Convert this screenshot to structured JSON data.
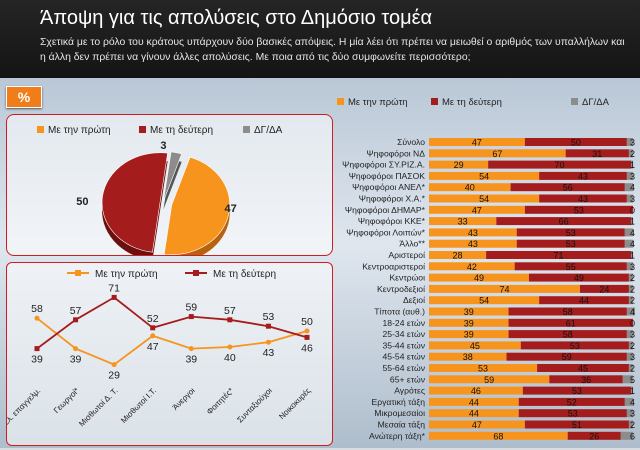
{
  "header": {
    "title": "Άποψη για τις απολύσεις στο Δημόσιο τομέα",
    "subtitle": "Σχετικά με το ρόλο του κράτους υπάρχουν δύο βασικές απόψεις. Η μία λέει ότι πρέπει να μειωθεί ο αριθμός των υπαλλήλων και η άλλη δεν πρέπει να γίνουν άλλες απολύσεις. Με ποια από τις δύο συμφωνείτε περισσότερο;"
  },
  "badge": "%",
  "colors": {
    "first": "#f7941d",
    "second": "#a51c1c",
    "dk": "#8c8c8c"
  },
  "chart_data": [
    {
      "type": "pie",
      "labels": [
        "Με την πρώτη",
        "Με τη δεύτερη",
        "ΔΓ/ΔΑ"
      ],
      "values": [
        47,
        50,
        3
      ]
    },
    {
      "type": "line",
      "categories": [
        "Ελ. επαγγελμ.",
        "Γεωργοί*",
        "Μισθωτοί Δ. Τ.",
        "Μισθωτοί Ι.Τ.",
        "Άνεργοι",
        "Φοιτητές*",
        "Συνταξιούχοι",
        "Νοικοκυρές"
      ],
      "series": [
        {
          "name": "Με την πρώτη",
          "values": [
            58,
            39,
            29,
            47,
            39,
            40,
            43,
            50
          ]
        },
        {
          "name": "Με τη δεύτερη",
          "values": [
            39,
            57,
            71,
            52,
            59,
            57,
            53,
            46
          ]
        }
      ]
    },
    {
      "type": "bar",
      "stacked": true,
      "orientation": "horizontal",
      "categories": [
        "Σύνολο",
        "Ψηφοφόροι ΝΔ",
        "Ψηφοφόροι ΣΥ.ΡΙΖ.Α.",
        "Ψηφοφόροι ΠΑΣΟΚ",
        "Ψηφοφόροι ΑΝΕΛ*",
        "Ψηφοφόροι Χ.Α.*",
        "Ψηφοφόροι ΔΗΜΑΡ*",
        "Ψηφοφόροι ΚΚΕ*",
        "Ψηφοφόροι Λοιπών*",
        "Άλλο**",
        "Αριστεροί",
        "Κεντροαριστεροί",
        "Κεντρώοι",
        "Κεντροδεξιοί",
        "Δεξιοί",
        "Τίποτα (αυθ.)",
        "18-24 ετών",
        "25-34 ετών",
        "35-44 ετών",
        "45-54 ετών",
        "55-64 ετών",
        "65+ ετών",
        "Αγρότες",
        "Εργατική τάξη",
        "Μικρομεσαίοι",
        "Μεσαία τάξη",
        "Ανώτερη τάξη*"
      ],
      "series": [
        {
          "name": "Με την πρώτη",
          "values": [
            47,
            67,
            29,
            54,
            40,
            54,
            47,
            33,
            43,
            43,
            28,
            42,
            49,
            74,
            54,
            39,
            39,
            39,
            45,
            38,
            53,
            59,
            46,
            44,
            44,
            47,
            68
          ]
        },
        {
          "name": "Με τη δεύτερη",
          "values": [
            50,
            31,
            70,
            43,
            56,
            43,
            53,
            66,
            53,
            53,
            71,
            55,
            49,
            24,
            44,
            58,
            61,
            58,
            53,
            59,
            45,
            36,
            53,
            52,
            53,
            51,
            26
          ]
        },
        {
          "name": "ΔΓ/ΔΑ",
          "values": [
            3,
            2,
            1,
            3,
            4,
            3,
            0,
            1,
            4,
            4,
            1,
            3,
            2,
            2,
            2,
            4,
            0,
            3,
            2,
            3,
            2,
            5,
            1,
            4,
            3,
            2,
            6
          ]
        }
      ]
    }
  ]
}
